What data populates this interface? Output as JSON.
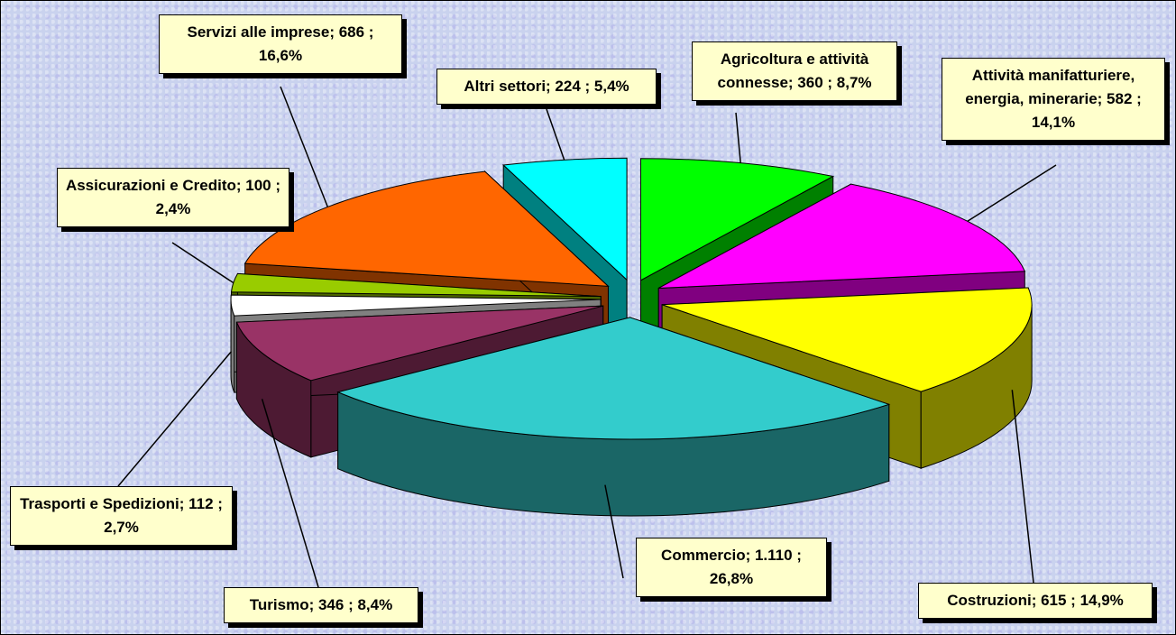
{
  "chart_data": {
    "type": "pie3d",
    "labels": [
      "Agricoltura e attività connesse; 360 ; 8,7%",
      "Attività manifatturiere, energia, minerarie; 582 ; 14,1%",
      "Costruzioni; 615 ; 14,9%",
      "Commercio; 1.110 ; 26,8%",
      "Turismo; 346 ; 8,4%",
      "Trasporti e Spedizioni; 112 ; 2,7%",
      "Assicurazioni e Credito; 100 ; 2,4%",
      "Servizi alle imprese; 686 ; 16,6%",
      "Altri settori; 224 ; 5,4%"
    ],
    "values": [
      360,
      582,
      615,
      1110,
      346,
      112,
      100,
      686,
      224
    ],
    "colors": [
      "#00ff00",
      "#ff00ff",
      "#ffff00",
      "#33cccc",
      "#993366",
      "#ffffff",
      "#99cc00",
      "#ff6600",
      "#00ffff"
    ]
  }
}
